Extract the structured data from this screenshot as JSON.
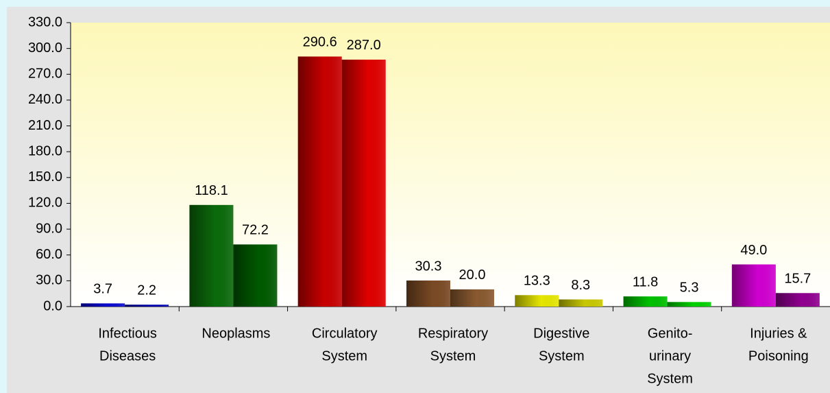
{
  "chart_data": {
    "type": "bar",
    "categories": [
      [
        "Infectious",
        "Diseases"
      ],
      [
        "Neoplasms"
      ],
      [
        "Circulatory",
        "System"
      ],
      [
        "Respiratory",
        "System"
      ],
      [
        "Digestive",
        "System"
      ],
      [
        "Genito-",
        "urinary",
        "System"
      ],
      [
        "Injuries &",
        "Poisoning"
      ]
    ],
    "series": [
      {
        "colors": [
          "#0a0ad0",
          "#0b6b0b",
          "#c80000",
          "#7a4a24",
          "#e6e600",
          "#00c000",
          "#d000d0"
        ],
        "values": [
          3.7,
          118.1,
          290.6,
          30.3,
          13.3,
          11.8,
          49.0
        ],
        "value_labels": [
          "3.7",
          "118.1",
          "290.6",
          "30.3",
          "13.3",
          "11.8",
          "49.0"
        ]
      },
      {
        "colors": [
          "#0000b0",
          "#005a00",
          "#e00000",
          "#8a5a30",
          "#c8c800",
          "#00d000",
          "#900090"
        ],
        "values": [
          2.2,
          72.2,
          287.0,
          20.0,
          8.3,
          5.3,
          15.7
        ],
        "value_labels": [
          "2.2",
          "72.2",
          "287.0",
          "20.0",
          "8.3",
          "5.3",
          "15.7"
        ]
      }
    ],
    "ylim": [
      0,
      330
    ],
    "yticks": [
      {
        "value": 0,
        "label": "0.0"
      },
      {
        "value": 30,
        "label": "30.0"
      },
      {
        "value": 60,
        "label": "60.0"
      },
      {
        "value": 90,
        "label": "90.0"
      },
      {
        "value": 120,
        "label": "120.0"
      },
      {
        "value": 150,
        "label": "150.0"
      },
      {
        "value": 180,
        "label": "180.0"
      },
      {
        "value": 210,
        "label": "210.0"
      },
      {
        "value": 240,
        "label": "240.0"
      },
      {
        "value": 270,
        "label": "270.0"
      },
      {
        "value": 300,
        "label": "300.0"
      },
      {
        "value": 330,
        "label": "330.0"
      }
    ]
  }
}
